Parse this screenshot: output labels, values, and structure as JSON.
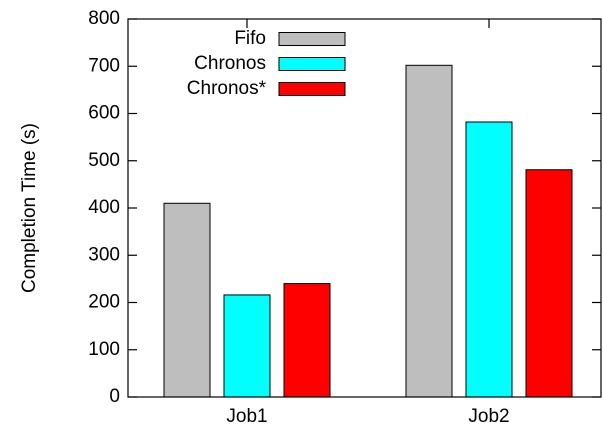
{
  "chart_data": {
    "type": "bar",
    "categories": [
      "Job1",
      "Job2"
    ],
    "series": [
      {
        "name": "Fifo",
        "values": [
          410,
          702
        ],
        "color": "#bebebe"
      },
      {
        "name": "Chronos",
        "values": [
          216,
          582
        ],
        "color": "#00ffff"
      },
      {
        "name": "Chronos*",
        "values": [
          240,
          481
        ],
        "color": "#ff0000"
      }
    ],
    "ylabel": "Completion Time (s)",
    "xlabel": "",
    "ylim": [
      0,
      800
    ],
    "yticks": [
      0,
      100,
      200,
      300,
      400,
      500,
      600,
      700,
      800
    ],
    "legend_position": "top-left",
    "grid": false
  }
}
